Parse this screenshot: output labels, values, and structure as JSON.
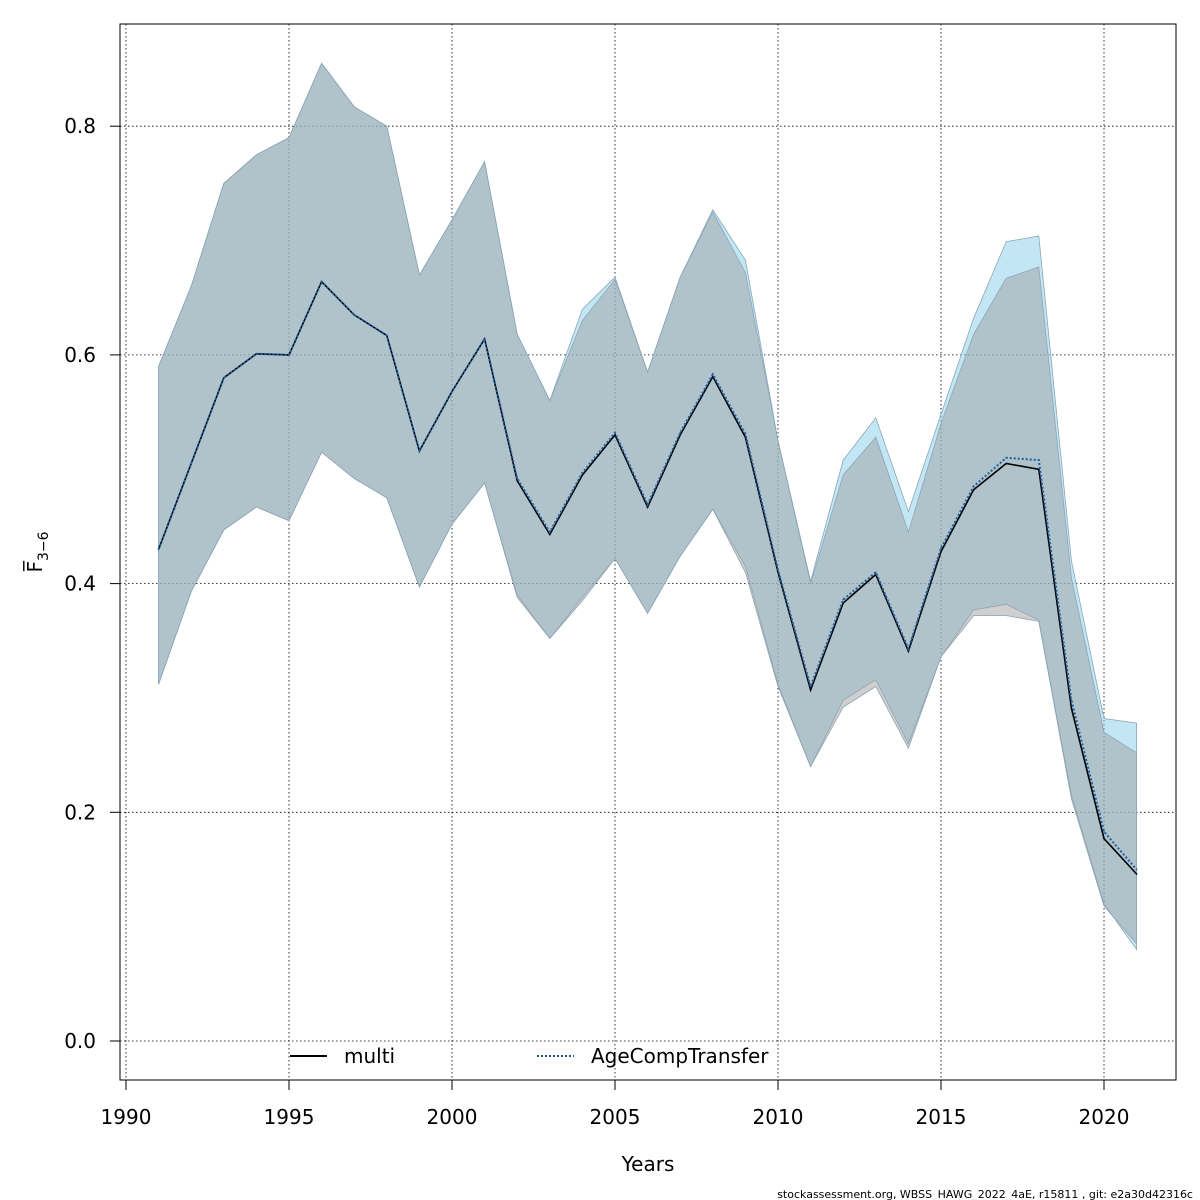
{
  "chart_data": {
    "type": "area",
    "xlabel": "Years",
    "ylabel": "F̅",
    "ylabel_subscript": "3−6",
    "xlim": [
      1990,
      2022
    ],
    "ylim": [
      0.0,
      0.85
    ],
    "x_ticks": [
      "1990",
      "1995",
      "2000",
      "2005",
      "2010",
      "2015",
      "2020"
    ],
    "y_ticks": [
      "0.0",
      "0.2",
      "0.4",
      "0.6",
      "0.8"
    ],
    "grid": true,
    "legend_position": "bottom",
    "x": [
      1991,
      1992,
      1993,
      1994,
      1995,
      1996,
      1997,
      1998,
      1999,
      2000,
      2001,
      2002,
      2003,
      2004,
      2005,
      2006,
      2007,
      2008,
      2009,
      2010,
      2011,
      2012,
      2013,
      2014,
      2015,
      2016,
      2017,
      2018,
      2019,
      2020,
      2021
    ],
    "series": [
      {
        "name": "multi",
        "line_style": "solid",
        "line_color": "#000000",
        "band_color": "#a0a0a0",
        "values": [
          0.43,
          0.505,
          0.58,
          0.601,
          0.6,
          0.664,
          0.635,
          0.617,
          0.516,
          0.568,
          0.614,
          0.49,
          0.443,
          0.495,
          0.53,
          0.467,
          0.53,
          0.581,
          0.528,
          0.41,
          0.307,
          0.383,
          0.408,
          0.341,
          0.428,
          0.482,
          0.505,
          0.5,
          0.291,
          0.177,
          0.146
        ],
        "lower": [
          0.312,
          0.393,
          0.447,
          0.467,
          0.455,
          0.515,
          0.492,
          0.475,
          0.397,
          0.452,
          0.488,
          0.388,
          0.352,
          0.385,
          0.422,
          0.374,
          0.424,
          0.465,
          0.41,
          0.31,
          0.24,
          0.292,
          0.31,
          0.256,
          0.336,
          0.372,
          0.372,
          0.367,
          0.212,
          0.118,
          0.085
        ],
        "upper": [
          0.59,
          0.66,
          0.75,
          0.775,
          0.79,
          0.855,
          0.817,
          0.8,
          0.67,
          0.718,
          0.769,
          0.618,
          0.56,
          0.63,
          0.666,
          0.585,
          0.668,
          0.725,
          0.672,
          0.525,
          0.4,
          0.495,
          0.528,
          0.445,
          0.54,
          0.618,
          0.667,
          0.677,
          0.405,
          0.27,
          0.252
        ]
      },
      {
        "name": "AgeCompTransfer",
        "line_style": "dotted",
        "line_color": "#1f5f9f",
        "band_color": "#87ceeb",
        "values": [
          0.43,
          0.505,
          0.58,
          0.601,
          0.6,
          0.664,
          0.635,
          0.617,
          0.516,
          0.568,
          0.614,
          0.492,
          0.445,
          0.497,
          0.532,
          0.469,
          0.532,
          0.583,
          0.531,
          0.412,
          0.31,
          0.386,
          0.41,
          0.343,
          0.431,
          0.485,
          0.51,
          0.508,
          0.298,
          0.183,
          0.15
        ],
        "lower": [
          0.312,
          0.393,
          0.447,
          0.467,
          0.455,
          0.515,
          0.492,
          0.475,
          0.397,
          0.452,
          0.488,
          0.39,
          0.352,
          0.388,
          0.422,
          0.374,
          0.424,
          0.465,
          0.415,
          0.312,
          0.24,
          0.298,
          0.316,
          0.26,
          0.336,
          0.377,
          0.382,
          0.368,
          0.215,
          0.12,
          0.08
        ],
        "upper": [
          0.59,
          0.66,
          0.75,
          0.775,
          0.79,
          0.855,
          0.817,
          0.8,
          0.67,
          0.718,
          0.769,
          0.618,
          0.56,
          0.64,
          0.668,
          0.585,
          0.668,
          0.727,
          0.683,
          0.525,
          0.402,
          0.508,
          0.545,
          0.463,
          0.548,
          0.632,
          0.699,
          0.704,
          0.42,
          0.282,
          0.278
        ]
      }
    ]
  },
  "footer": "stockassessment.org, WBSS_HAWG_2022_4aE, r15811 , git: e2a30d42316c"
}
